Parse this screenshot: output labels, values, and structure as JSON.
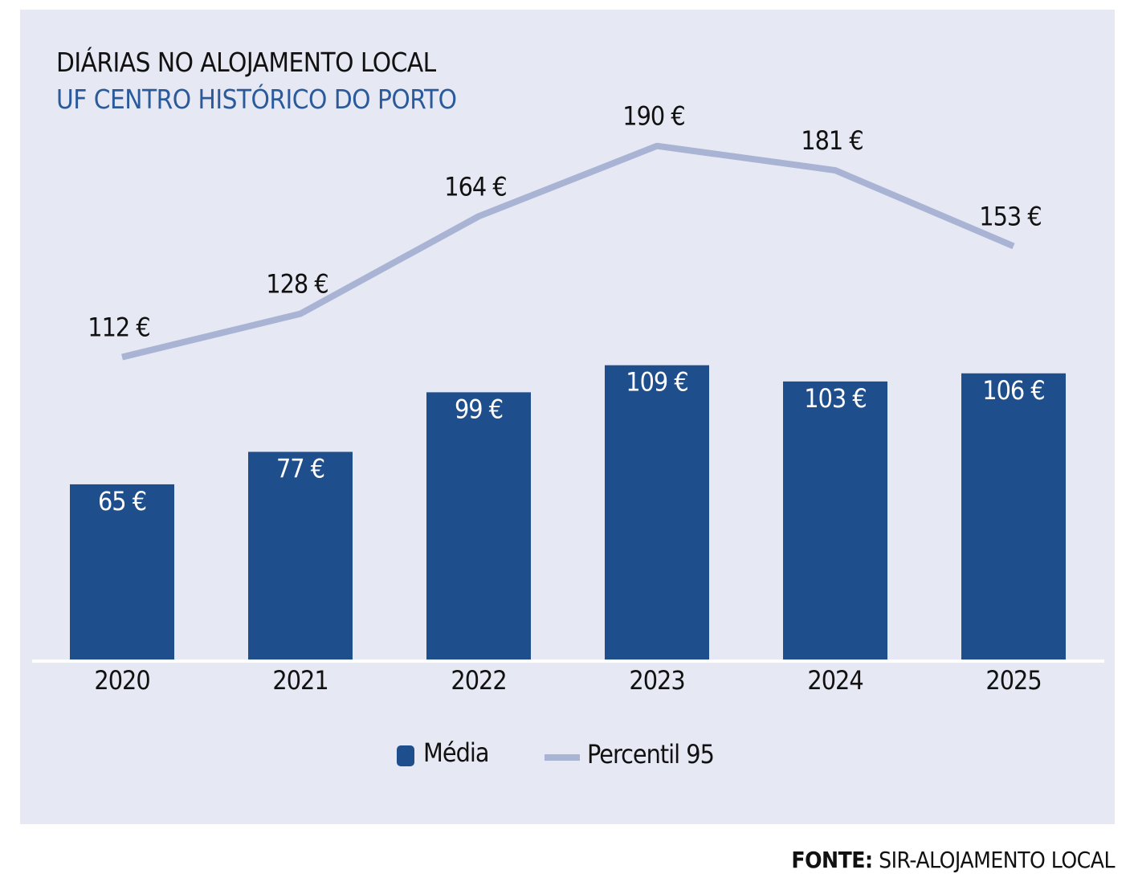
{
  "chart_data": {
    "type": "bar",
    "title": "DIÁRIAS NO ALOJAMENTO LOCAL",
    "subtitle": "UF CENTRO HISTÓRICO DO PORTO",
    "categories": [
      "2020",
      "2021",
      "2022",
      "2023",
      "2024",
      "2025"
    ],
    "series": [
      {
        "name": "Média",
        "type": "bar",
        "values": [
          65,
          77,
          99,
          109,
          103,
          106
        ],
        "labels": [
          "65 €",
          "77 €",
          "99 €",
          "109 €",
          "103 €",
          "106 €"
        ],
        "color": "#1f4e8c"
      },
      {
        "name": "Percentil 95",
        "type": "line",
        "values": [
          112,
          128,
          164,
          190,
          181,
          153
        ],
        "labels": [
          "112 €",
          "128 €",
          "164 €",
          "190 €",
          "181 €",
          "153 €"
        ],
        "color": "#a9b4d4"
      }
    ],
    "unit": "€",
    "ylim": [
      0,
      200
    ],
    "grid": false,
    "legend": "bottom-center",
    "source_label": "FONTE:",
    "source": "SIR-ALOJAMENTO LOCAL"
  }
}
